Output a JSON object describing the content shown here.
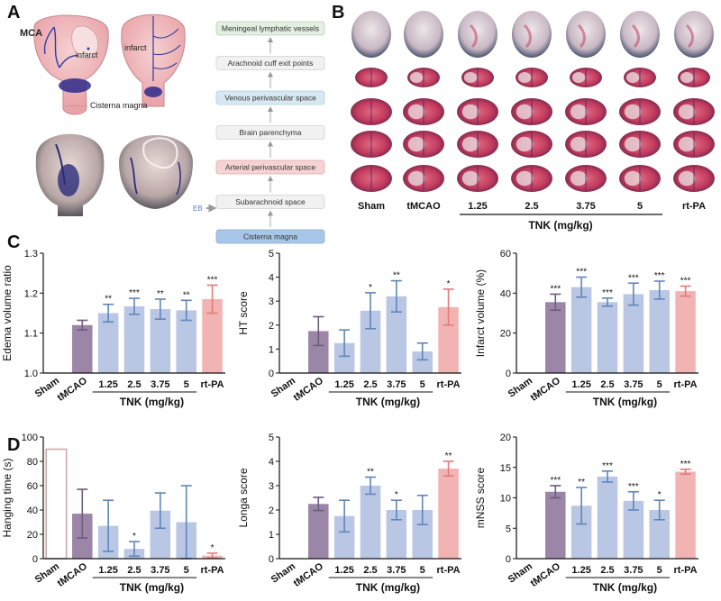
{
  "figure": {
    "panel_labels": [
      "A",
      "B",
      "C",
      "D"
    ],
    "panel_a": {
      "brain_labels": {
        "mca": "MCA",
        "infarct_left": "infarct",
        "infarct_right": "infarct",
        "cisterna": "Cisterna magna"
      },
      "eb_label": "EB",
      "flow_steps": [
        {
          "text": "Meningeal lymphatic vessels",
          "fill": "#e3efe0",
          "stroke": "#b8d2b0"
        },
        {
          "text": "Arachnoid cuff exit points",
          "fill": "#f1f1f1",
          "stroke": "#cfcfcf"
        },
        {
          "text": "Venous perivascular space",
          "fill": "#d8e8f2",
          "stroke": "#aecbdf"
        },
        {
          "text": "Brain parenchyma",
          "fill": "#f1f1f1",
          "stroke": "#cfcfcf"
        },
        {
          "text": "Arterial perivascular space",
          "fill": "#f6d3d3",
          "stroke": "#e2a7a7"
        },
        {
          "text": "Subarachnoid space",
          "fill": "#f1f1f1",
          "stroke": "#cfcfcf"
        },
        {
          "text": "Cisterna magna",
          "fill": "#a8c6e8",
          "stroke": "#86abd8"
        }
      ]
    },
    "panel_b": {
      "groups": [
        "Sham",
        "tMCAO",
        "1.25",
        "2.5",
        "3.75",
        "5",
        "rt-PA"
      ],
      "tnk_label": "TNK (mg/kg)"
    }
  },
  "colors": {
    "tmcao": "#9b86a8",
    "tnk": "#b9c7e4",
    "rtpa": "#f2b3b3",
    "err_tmcao": "#6d5a7e",
    "err_tnk": "#5f86b9",
    "err_rtpa": "#e07b7b",
    "sham_outline": "#c9a3a3"
  },
  "chart_data": [
    {
      "id": "C1",
      "type": "bar",
      "ylabel": "Edema volume ratio",
      "categories": [
        "Sham",
        "tMCAO",
        "1.25",
        "2.5",
        "3.75",
        "5",
        "rt-PA"
      ],
      "values": [
        null,
        1.12,
        1.15,
        1.167,
        1.16,
        1.157,
        1.185
      ],
      "errors": [
        null,
        0.012,
        0.022,
        0.02,
        0.025,
        0.025,
        0.035
      ],
      "signif": [
        "",
        "",
        "**",
        "***",
        "**",
        "**",
        "***"
      ],
      "ylim": [
        1.0,
        1.3
      ],
      "yticks": [
        "1.0",
        "1.1",
        "1.2",
        "1.3"
      ],
      "xgroup": "TNK (mg/kg)"
    },
    {
      "id": "C2",
      "type": "bar",
      "ylabel": "HT score",
      "categories": [
        "Sham",
        "tMCAO",
        "1.25",
        "2.5",
        "3.75",
        "5",
        "rt-PA"
      ],
      "values": [
        null,
        1.75,
        1.25,
        2.6,
        3.2,
        0.9,
        2.75
      ],
      "errors": [
        null,
        0.6,
        0.55,
        0.75,
        0.65,
        0.35,
        0.75
      ],
      "signif": [
        "",
        "",
        "",
        "*",
        "**",
        "",
        "*"
      ],
      "ylim": [
        0,
        5
      ],
      "yticks": [
        "0",
        "1",
        "2",
        "3",
        "4",
        "5"
      ],
      "xgroup": "TNK (mg/kg)"
    },
    {
      "id": "C3",
      "type": "bar",
      "ylabel": "Infarct volume (%)",
      "categories": [
        "Sham",
        "tMCAO",
        "1.25",
        "2.5",
        "3.75",
        "5",
        "rt-PA"
      ],
      "values": [
        null,
        35.5,
        43.0,
        35.5,
        39.5,
        41.5,
        41.0
      ],
      "errors": [
        null,
        4.0,
        5.0,
        2.0,
        5.5,
        4.5,
        2.5
      ],
      "signif": [
        "",
        "***",
        "***",
        "***",
        "***",
        "***",
        "***"
      ],
      "ylim": [
        0,
        60
      ],
      "yticks": [
        "0",
        "20",
        "40",
        "60"
      ],
      "xgroup": "TNK (mg/kg)"
    },
    {
      "id": "D1",
      "type": "bar",
      "ylabel": "Hanging time (s)",
      "categories": [
        "Sham",
        "tMCAO",
        "1.25",
        "2.5",
        "3.75",
        "5",
        "rt-PA"
      ],
      "values": [
        90,
        37,
        27,
        8,
        39.5,
        30,
        2.5
      ],
      "errors": [
        0,
        20,
        21,
        6,
        14.5,
        30,
        2
      ],
      "signif": [
        "",
        "",
        "",
        "*",
        "",
        "",
        "*"
      ],
      "ylim": [
        0,
        100
      ],
      "yticks": [
        "0",
        "20",
        "40",
        "60",
        "80",
        "100"
      ],
      "xgroup": "TNK (mg/kg)"
    },
    {
      "id": "D2",
      "type": "bar",
      "ylabel": "Longa score",
      "categories": [
        "Sham",
        "tMCAO",
        "1.25",
        "2.5",
        "3.75",
        "5",
        "rt-PA"
      ],
      "values": [
        null,
        2.25,
        1.75,
        3.0,
        2.0,
        2.0,
        3.7
      ],
      "errors": [
        null,
        0.27,
        0.65,
        0.35,
        0.4,
        0.6,
        0.3
      ],
      "signif": [
        "",
        "",
        "",
        "**",
        "*",
        "",
        "**"
      ],
      "ylim": [
        0,
        5
      ],
      "yticks": [
        "0",
        "1",
        "2",
        "3",
        "4",
        "5"
      ],
      "xgroup": "TNK (mg/kg)"
    },
    {
      "id": "D3",
      "type": "bar",
      "ylabel": "mNSS score",
      "categories": [
        "Sham",
        "tMCAO",
        "1.25",
        "2.5",
        "3.75",
        "5",
        "rt-PA"
      ],
      "values": [
        null,
        11.0,
        8.7,
        13.5,
        9.5,
        8.0,
        14.3
      ],
      "errors": [
        null,
        1.0,
        3.0,
        0.9,
        1.5,
        1.6,
        0.4
      ],
      "signif": [
        "",
        "***",
        "**",
        "***",
        "***",
        "*",
        "***"
      ],
      "ylim": [
        0,
        20
      ],
      "yticks": [
        "0",
        "5",
        "10",
        "15",
        "20"
      ],
      "xgroup": "TNK (mg/kg)"
    }
  ]
}
